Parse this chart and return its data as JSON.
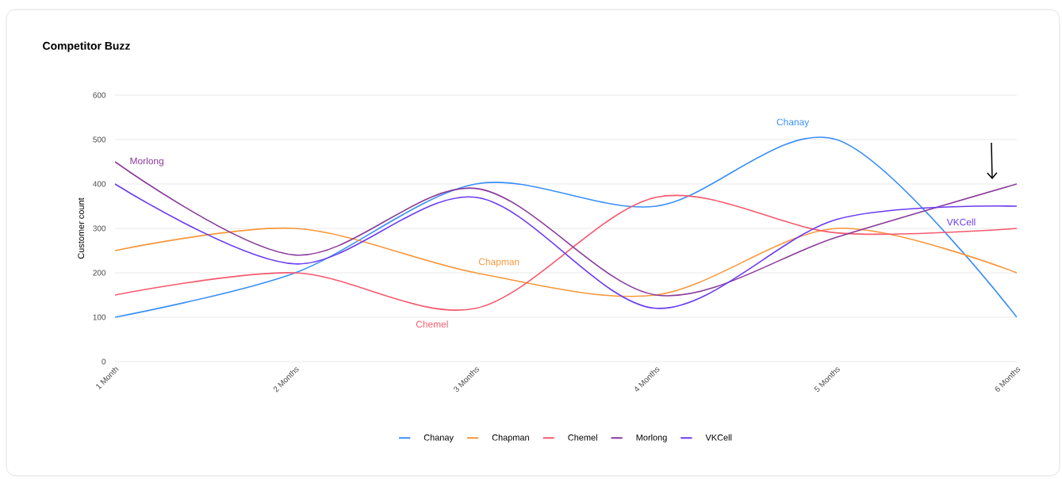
{
  "chart_data": {
    "type": "line",
    "title": "Competitor Buzz",
    "ylabel": "Customer count",
    "categories": [
      "1 Month",
      "2 Months",
      "3 Months",
      "4 Months",
      "5 Months",
      "6 Months"
    ],
    "series": [
      {
        "name": "Chanay",
        "color": "#3a8ff7",
        "values": [
          100,
          200,
          400,
          350,
          500,
          100
        ]
      },
      {
        "name": "Chapman",
        "color": "#f7973a",
        "values": [
          250,
          300,
          200,
          150,
          300,
          200
        ]
      },
      {
        "name": "Chemel",
        "color": "#f55a6e",
        "values": [
          150,
          200,
          120,
          370,
          290,
          300
        ]
      },
      {
        "name": "Morlong",
        "color": "#8a3a9c",
        "values": [
          450,
          240,
          390,
          150,
          280,
          400
        ]
      },
      {
        "name": "VKCell",
        "color": "#6a3cf2",
        "values": [
          400,
          220,
          370,
          120,
          320,
          350
        ]
      }
    ],
    "ylim": [
      0,
      600
    ],
    "yticks": [
      0,
      100,
      200,
      300,
      400,
      500,
      600
    ],
    "grid": "y",
    "legend": "bottom",
    "marker": "none",
    "line_style": "solid"
  }
}
